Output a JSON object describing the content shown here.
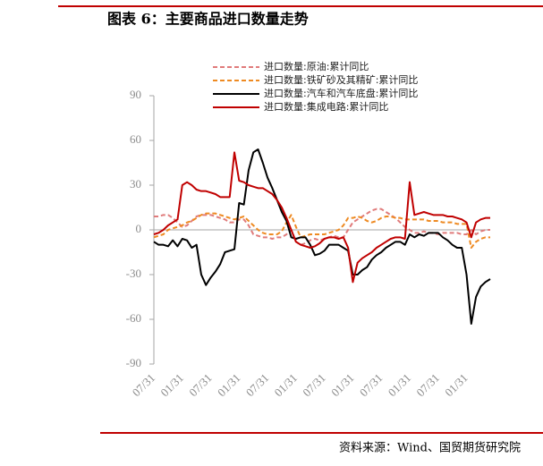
{
  "chart_data": {
    "type": "line",
    "title": "图表 6：主要商品进口数量走势",
    "source": "资料来源：Wind、国贸期货研究院",
    "categories": [
      "07/31",
      null,
      null,
      null,
      null,
      null,
      "01/31",
      null,
      null,
      null,
      null,
      null,
      "07/31",
      null,
      null,
      null,
      null,
      null,
      "01/31",
      null,
      null,
      null,
      null,
      null,
      "07/31",
      null,
      null,
      null,
      null,
      null,
      "01/31",
      null,
      null,
      null,
      null,
      null,
      "07/31",
      null,
      null,
      null,
      null,
      null,
      "01/31",
      null,
      null,
      null,
      null,
      null,
      "07/31",
      null,
      null,
      null,
      null,
      null,
      "01/31",
      null,
      null,
      null,
      null,
      null,
      "07/31",
      null,
      null,
      null,
      null,
      null,
      "01/31",
      null,
      null,
      null,
      null,
      null
    ],
    "ylim": [
      -90,
      90
    ],
    "yticks": [
      -90,
      -60,
      -30,
      0,
      30,
      60,
      90
    ],
    "series": [
      {
        "name": "进口数量:原油:累计同比",
        "color": "#e07b7b",
        "dashed": true,
        "values": [
          9,
          9,
          10,
          10,
          8,
          5,
          2,
          3,
          6,
          9,
          10,
          10,
          10,
          9,
          8,
          7,
          5,
          5,
          7,
          7,
          3,
          -3,
          -4,
          -5,
          -5,
          -6,
          -5,
          -5,
          -3,
          0,
          -8,
          -10,
          -9,
          -7,
          -6,
          -7,
          -6,
          -5,
          -4,
          -5,
          -5,
          0,
          5,
          7,
          9,
          11,
          13,
          14,
          14,
          12,
          10,
          8,
          5,
          2,
          0,
          -2,
          -2,
          -1,
          -2,
          -2,
          -3,
          -2,
          -2,
          -2,
          -2,
          -3,
          -3,
          0,
          -3,
          -1,
          0,
          0
        ]
      },
      {
        "name": "进口数量:铁矿砂及其精矿:累计同比",
        "color": "#ee8a22",
        "dashed": true,
        "values": [
          -5,
          -4,
          -3,
          0,
          1,
          2,
          3,
          5,
          6,
          8,
          10,
          11,
          11,
          11,
          10,
          9,
          8,
          7,
          8,
          9,
          6,
          3,
          0,
          -2,
          -3,
          -3,
          -3,
          -1,
          5,
          10,
          2,
          -5,
          -4,
          -3,
          -3,
          -3,
          -3,
          -2,
          -1,
          0,
          3,
          8,
          8,
          9,
          8,
          6,
          5,
          6,
          8,
          9,
          9,
          8,
          8,
          7,
          7,
          7,
          7,
          7,
          6,
          6,
          6,
          5,
          5,
          5,
          4,
          4,
          4,
          -12,
          -8,
          -6,
          -5,
          -5
        ]
      },
      {
        "name": "进口数量:汽车和汽车底盘:累计同比",
        "color": "#000000",
        "dashed": false,
        "values": [
          -8,
          -10,
          -10,
          -11,
          -7,
          -11,
          -6,
          -7,
          -12,
          -10,
          -30,
          -37,
          -32,
          -28,
          -23,
          -15,
          -14,
          -13,
          18,
          17,
          40,
          52,
          54,
          45,
          35,
          28,
          20,
          12,
          6,
          -5,
          -6,
          -5,
          -5,
          -10,
          -17,
          -16,
          -14,
          -10,
          -10,
          -10,
          -12,
          -14,
          -30,
          -30,
          -27,
          -25,
          -20,
          -17,
          -15,
          -12,
          -10,
          -8,
          -8,
          -10,
          -3,
          -5,
          -3,
          -4,
          -2,
          -2,
          -2,
          -5,
          -7,
          -10,
          -12,
          -12,
          -30,
          -63,
          -45,
          -38,
          -35,
          -33
        ]
      },
      {
        "name": "进口数量:集成电路:累计同比",
        "color": "#c00000",
        "dashed": false,
        "values": [
          -3,
          -2,
          0,
          3,
          5,
          7,
          30,
          32,
          30,
          27,
          26,
          26,
          25,
          24,
          22,
          22,
          22,
          52,
          33,
          32,
          30,
          29,
          28,
          28,
          26,
          24,
          20,
          15,
          8,
          0,
          -8,
          -10,
          -11,
          -12,
          -11,
          -9,
          -6,
          -5,
          -5,
          -6,
          -5,
          -12,
          -35,
          -22,
          -19,
          -17,
          -15,
          -12,
          -10,
          -8,
          -6,
          -5,
          -5,
          -6,
          32,
          10,
          11,
          12,
          11,
          10,
          10,
          10,
          9,
          9,
          8,
          7,
          5,
          -5,
          5,
          7,
          8,
          8
        ]
      }
    ]
  }
}
